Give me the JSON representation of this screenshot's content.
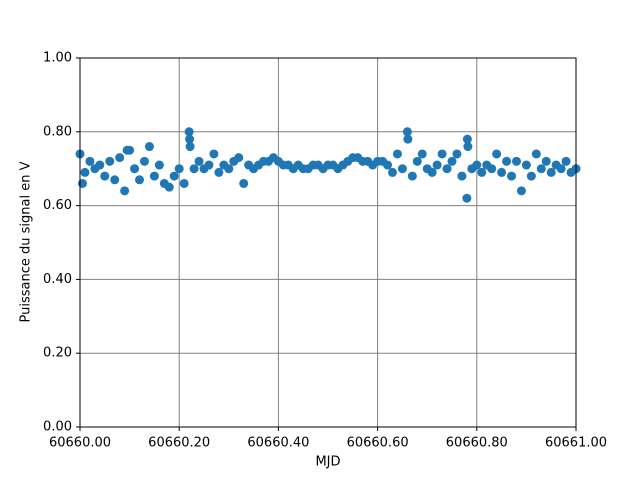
{
  "chart_data": {
    "type": "scatter",
    "xlabel": "MJD",
    "ylabel": "Puissance du signal en V",
    "color": "#1f77b4",
    "grid": true,
    "xlim": [
      60660.0,
      60661.0
    ],
    "xticks": [
      {
        "value": 60660.0,
        "label": "60660.00"
      },
      {
        "value": 60660.2,
        "label": "60660.20"
      },
      {
        "value": 60660.4,
        "label": "60660.40"
      },
      {
        "value": 60660.6,
        "label": "60660.60"
      },
      {
        "value": 60660.8,
        "label": "60660.80"
      },
      {
        "value": 60661.0,
        "label": "60661.00"
      }
    ],
    "ylim": [
      0,
      1
    ],
    "yticks": [
      {
        "value": 0,
        "label": "0.00"
      },
      {
        "value": 0.2,
        "label": "0.20"
      },
      {
        "value": 0.4,
        "label": "0.40"
      },
      {
        "value": 0.6,
        "label": "0.60"
      },
      {
        "value": 0.8,
        "label": "0.80"
      },
      {
        "value": 1,
        "label": "1.00"
      }
    ],
    "x": [
      60660.0,
      60660.01,
      60660.02,
      60660.03,
      60660.04,
      60660.05,
      60660.06,
      60660.07,
      60660.08,
      60660.09,
      60660.1,
      60660.11,
      60660.12,
      60660.13,
      60660.14,
      60660.15,
      60660.16,
      60660.17,
      60660.18,
      60660.19,
      60660.2,
      60660.21,
      60660.22,
      60660.23,
      60660.24,
      60660.25,
      60660.26,
      60660.27,
      60660.28,
      60660.29,
      60660.3,
      60660.31,
      60660.32,
      60660.33,
      60660.34,
      60660.35,
      60660.36,
      60660.37,
      60660.38,
      60660.39,
      60660.4,
      60660.41,
      60660.42,
      60660.43,
      60660.44,
      60660.45,
      60660.46,
      60660.47,
      60660.48,
      60660.49,
      60660.5,
      60660.51,
      60660.52,
      60660.53,
      60660.54,
      60660.55,
      60660.56,
      60660.57,
      60660.58,
      60660.59,
      60660.6,
      60660.61,
      60660.62,
      60660.63,
      60660.64,
      60660.65,
      60660.66,
      60660.67,
      60660.68,
      60660.69,
      60660.7,
      60660.71,
      60660.72,
      60660.73,
      60660.74,
      60660.75,
      60660.76,
      60660.77,
      60660.78,
      60660.79,
      60660.8,
      60660.81,
      60660.82,
      60660.83,
      60660.84,
      60660.85,
      60660.86,
      60660.87,
      60660.88,
      60660.89,
      60660.9,
      60660.91,
      60660.92,
      60660.93,
      60660.94,
      60660.95,
      60660.96,
      60660.97,
      60660.98,
      60660.99,
      60661.0,
      60660.221,
      60660.222,
      60660.661,
      60660.781,
      60660.782,
      60660.095,
      60660.005
    ],
    "values": [
      0.74,
      0.69,
      0.72,
      0.7,
      0.71,
      0.68,
      0.72,
      0.67,
      0.73,
      0.64,
      0.75,
      0.7,
      0.67,
      0.72,
      0.76,
      0.68,
      0.71,
      0.66,
      0.65,
      0.68,
      0.7,
      0.66,
      0.8,
      0.7,
      0.72,
      0.7,
      0.71,
      0.74,
      0.69,
      0.71,
      0.7,
      0.72,
      0.73,
      0.66,
      0.71,
      0.7,
      0.71,
      0.72,
      0.72,
      0.73,
      0.72,
      0.71,
      0.71,
      0.7,
      0.71,
      0.7,
      0.7,
      0.71,
      0.71,
      0.7,
      0.71,
      0.71,
      0.7,
      0.71,
      0.72,
      0.73,
      0.73,
      0.72,
      0.72,
      0.71,
      0.72,
      0.72,
      0.71,
      0.69,
      0.74,
      0.7,
      0.8,
      0.68,
      0.72,
      0.74,
      0.7,
      0.69,
      0.71,
      0.74,
      0.7,
      0.72,
      0.74,
      0.68,
      0.62,
      0.7,
      0.71,
      0.69,
      0.71,
      0.7,
      0.74,
      0.69,
      0.72,
      0.68,
      0.72,
      0.64,
      0.71,
      0.68,
      0.74,
      0.7,
      0.72,
      0.69,
      0.71,
      0.7,
      0.72,
      0.69,
      0.7,
      0.78,
      0.76,
      0.78,
      0.78,
      0.76,
      0.75,
      0.66
    ]
  }
}
